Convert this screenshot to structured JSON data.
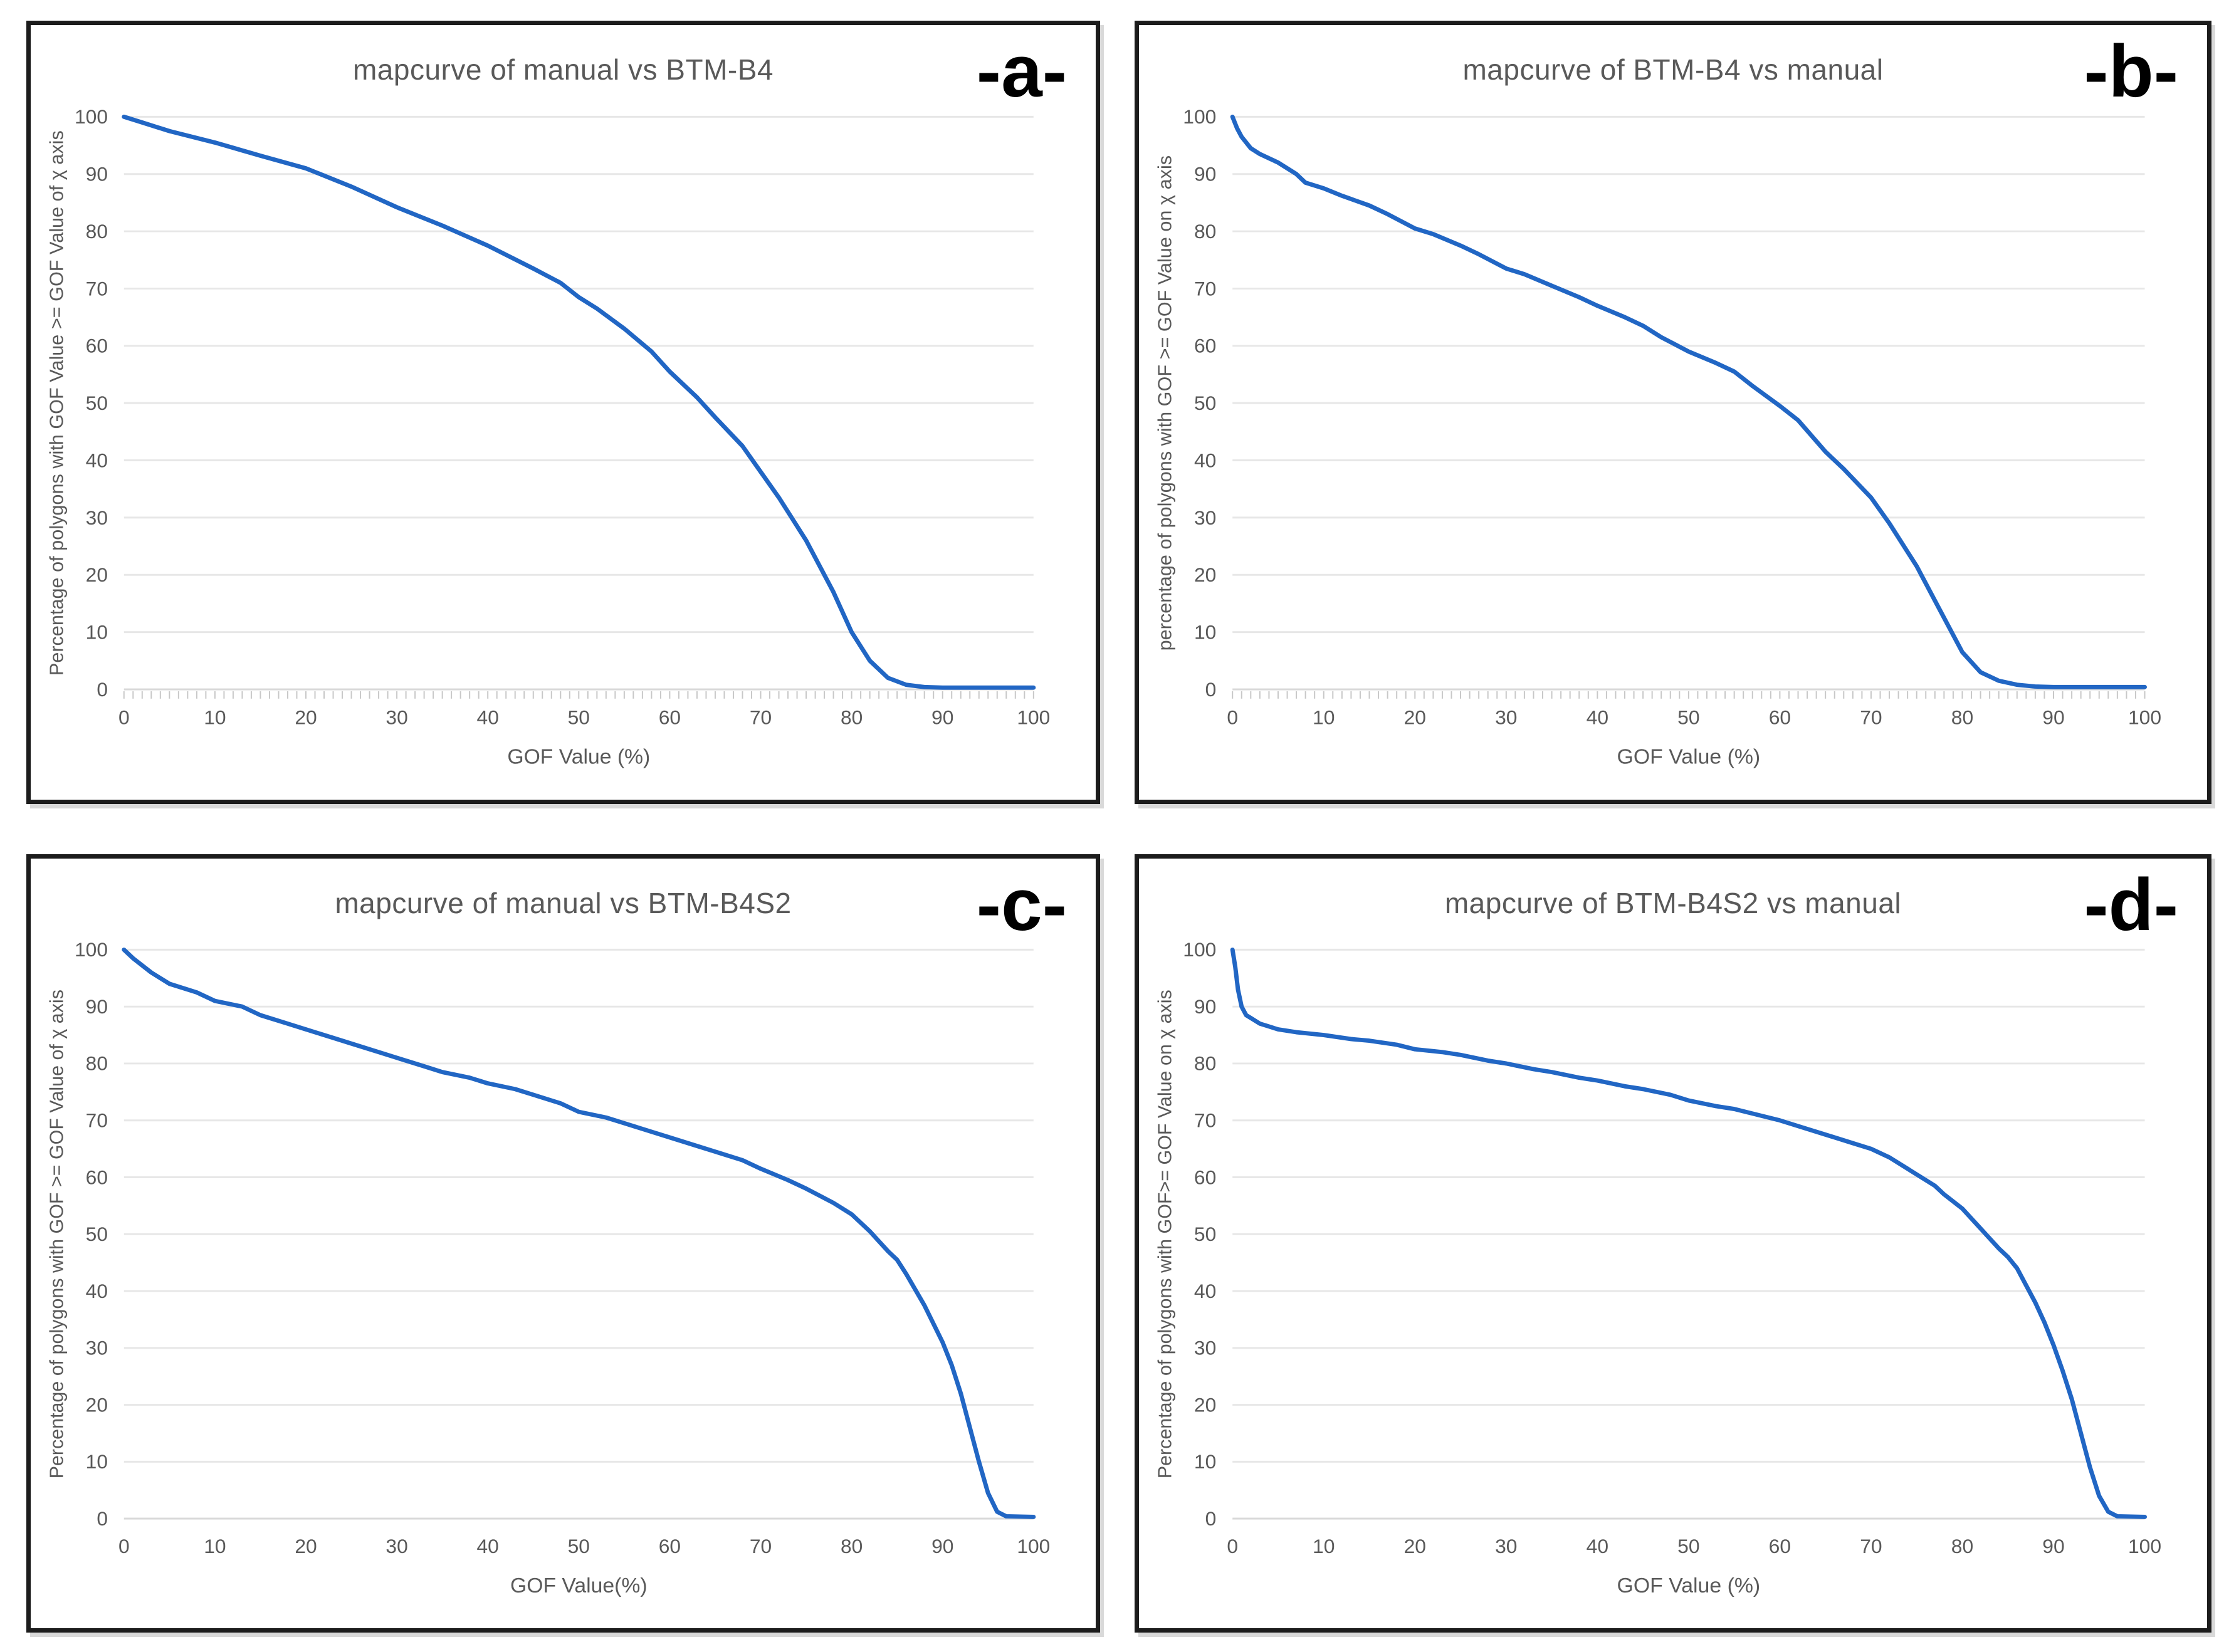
{
  "page": {
    "background": "#ffffff",
    "description": "Four mapcurve line charts comparing manual vs BTM classifications"
  },
  "colors": {
    "curve": "#2166c4",
    "grid": "#e7e7e7",
    "baseline": "#d9d9d9",
    "minor_tick": "#c8c8c8",
    "axis_text": "#595959",
    "title_text": "#595959",
    "panel_border": "#1c1c1c",
    "panel_label": "#000000"
  },
  "chart_data": [
    {
      "type": "line",
      "panel_label": "-a-",
      "title": "mapcurve of manual vs BTM-B4",
      "xlabel": "GOF Value (%)",
      "ylabel": "Percentage of polygons with GOF Value >= GOF Value of χ axis",
      "xlim": [
        0,
        100
      ],
      "ylim": [
        0,
        100
      ],
      "xticks": [
        0,
        10,
        20,
        30,
        40,
        50,
        60,
        70,
        80,
        90,
        100
      ],
      "yticks": [
        0,
        10,
        20,
        30,
        40,
        50,
        60,
        70,
        80,
        90,
        100
      ],
      "grid": "horizontal",
      "legend": "none",
      "minor_x_ticks": true,
      "series": [
        {
          "name": "mapcurve manual vs BTM-B4",
          "points": [
            [
              0,
              100
            ],
            [
              2,
              99
            ],
            [
              5,
              97.5
            ],
            [
              10,
              95.5
            ],
            [
              15,
              93.2
            ],
            [
              20,
              91
            ],
            [
              25,
              87.8
            ],
            [
              30,
              84.2
            ],
            [
              35,
              81
            ],
            [
              40,
              77.5
            ],
            [
              45,
              73.5
            ],
            [
              48,
              71
            ],
            [
              50,
              68.5
            ],
            [
              52,
              66.5
            ],
            [
              55,
              63
            ],
            [
              58,
              59
            ],
            [
              60,
              55.5
            ],
            [
              63,
              51
            ],
            [
              65,
              47.5
            ],
            [
              68,
              42.5
            ],
            [
              70,
              38
            ],
            [
              72,
              33.5
            ],
            [
              75,
              26
            ],
            [
              78,
              17
            ],
            [
              80,
              10
            ],
            [
              82,
              5
            ],
            [
              84,
              2
            ],
            [
              86,
              0.8
            ],
            [
              88,
              0.4
            ],
            [
              90,
              0.3
            ],
            [
              95,
              0.3
            ],
            [
              100,
              0.3
            ]
          ]
        }
      ]
    },
    {
      "type": "line",
      "panel_label": "-b-",
      "title": "mapcurve of BTM-B4 vs manual",
      "xlabel": "GOF Value (%)",
      "ylabel": "percentage of polygons with GOF >= GOF Value on χ axis",
      "xlim": [
        0,
        100
      ],
      "ylim": [
        0,
        100
      ],
      "xticks": [
        0,
        10,
        20,
        30,
        40,
        50,
        60,
        70,
        80,
        90,
        100
      ],
      "yticks": [
        0,
        10,
        20,
        30,
        40,
        50,
        60,
        70,
        80,
        90,
        100
      ],
      "grid": "horizontal",
      "legend": "none",
      "minor_x_ticks": true,
      "series": [
        {
          "name": "mapcurve BTM-B4 vs manual",
          "points": [
            [
              0,
              100
            ],
            [
              0.5,
              98
            ],
            [
              1,
              96.5
            ],
            [
              2,
              94.5
            ],
            [
              3,
              93.5
            ],
            [
              5,
              92
            ],
            [
              7,
              90
            ],
            [
              8,
              88.5
            ],
            [
              10,
              87.5
            ],
            [
              12,
              86.2
            ],
            [
              15,
              84.5
            ],
            [
              17,
              83
            ],
            [
              20,
              80.5
            ],
            [
              22,
              79.5
            ],
            [
              25,
              77.5
            ],
            [
              27,
              76
            ],
            [
              30,
              73.5
            ],
            [
              32,
              72.5
            ],
            [
              35,
              70.5
            ],
            [
              38,
              68.5
            ],
            [
              40,
              67
            ],
            [
              43,
              65
            ],
            [
              45,
              63.5
            ],
            [
              47,
              61.5
            ],
            [
              50,
              59
            ],
            [
              53,
              57
            ],
            [
              55,
              55.5
            ],
            [
              57,
              53
            ],
            [
              60,
              49.5
            ],
            [
              62,
              47
            ],
            [
              65,
              41.5
            ],
            [
              67,
              38.5
            ],
            [
              70,
              33.5
            ],
            [
              72,
              29
            ],
            [
              75,
              21.5
            ],
            [
              77,
              15.5
            ],
            [
              80,
              6.5
            ],
            [
              82,
              3
            ],
            [
              84,
              1.5
            ],
            [
              86,
              0.8
            ],
            [
              88,
              0.5
            ],
            [
              90,
              0.4
            ],
            [
              95,
              0.4
            ],
            [
              100,
              0.4
            ]
          ]
        }
      ]
    },
    {
      "type": "line",
      "panel_label": "-c-",
      "title": "mapcurve of manual vs BTM-B4S2",
      "xlabel": "GOF Value(%)",
      "ylabel": "Percentage of polygons with GOF >= GOF Value of χ axis",
      "xlim": [
        0,
        100
      ],
      "ylim": [
        0,
        100
      ],
      "xticks": [
        0,
        10,
        20,
        30,
        40,
        50,
        60,
        70,
        80,
        90,
        100
      ],
      "yticks": [
        0,
        10,
        20,
        30,
        40,
        50,
        60,
        70,
        80,
        90,
        100
      ],
      "grid": "horizontal",
      "legend": "none",
      "minor_x_ticks": false,
      "series": [
        {
          "name": "mapcurve manual vs BTM-B4S2",
          "points": [
            [
              0,
              100
            ],
            [
              1,
              98.5
            ],
            [
              3,
              96
            ],
            [
              5,
              94
            ],
            [
              8,
              92.5
            ],
            [
              10,
              91
            ],
            [
              13,
              90
            ],
            [
              15,
              88.5
            ],
            [
              18,
              87
            ],
            [
              20,
              86
            ],
            [
              23,
              84.5
            ],
            [
              25,
              83.5
            ],
            [
              28,
              82
            ],
            [
              30,
              81
            ],
            [
              33,
              79.5
            ],
            [
              35,
              78.5
            ],
            [
              38,
              77.5
            ],
            [
              40,
              76.5
            ],
            [
              43,
              75.5
            ],
            [
              45,
              74.5
            ],
            [
              48,
              73
            ],
            [
              50,
              71.5
            ],
            [
              53,
              70.5
            ],
            [
              55,
              69.5
            ],
            [
              58,
              68
            ],
            [
              60,
              67
            ],
            [
              63,
              65.5
            ],
            [
              65,
              64.5
            ],
            [
              68,
              63
            ],
            [
              70,
              61.5
            ],
            [
              73,
              59.5
            ],
            [
              75,
              58
            ],
            [
              78,
              55.5
            ],
            [
              80,
              53.5
            ],
            [
              82,
              50.5
            ],
            [
              84,
              47
            ],
            [
              85,
              45.5
            ],
            [
              86,
              43
            ],
            [
              88,
              37.5
            ],
            [
              90,
              31
            ],
            [
              91,
              27
            ],
            [
              92,
              22
            ],
            [
              93,
              16
            ],
            [
              94,
              10
            ],
            [
              95,
              4.5
            ],
            [
              96,
              1.2
            ],
            [
              97,
              0.4
            ],
            [
              100,
              0.3
            ]
          ]
        }
      ]
    },
    {
      "type": "line",
      "panel_label": "-d-",
      "title": "mapcurve of BTM-B4S2 vs manual",
      "xlabel": "GOF Value (%)",
      "ylabel": "Percentage of polygons with GOF>= GOF Value on χ axis",
      "xlim": [
        0,
        100
      ],
      "ylim": [
        0,
        100
      ],
      "xticks": [
        0,
        10,
        20,
        30,
        40,
        50,
        60,
        70,
        80,
        90,
        100
      ],
      "yticks": [
        0,
        10,
        20,
        30,
        40,
        50,
        60,
        70,
        80,
        90,
        100
      ],
      "grid": "horizontal",
      "legend": "none",
      "minor_x_ticks": false,
      "series": [
        {
          "name": "mapcurve BTM-B4S2 vs manual",
          "points": [
            [
              0,
              100
            ],
            [
              0.3,
              97
            ],
            [
              0.6,
              93
            ],
            [
              1,
              90
            ],
            [
              1.5,
              88.5
            ],
            [
              2,
              88
            ],
            [
              3,
              87
            ],
            [
              4,
              86.5
            ],
            [
              5,
              86
            ],
            [
              7,
              85.5
            ],
            [
              10,
              85
            ],
            [
              13,
              84.3
            ],
            [
              15,
              84
            ],
            [
              18,
              83.3
            ],
            [
              20,
              82.5
            ],
            [
              23,
              82
            ],
            [
              25,
              81.5
            ],
            [
              28,
              80.5
            ],
            [
              30,
              80
            ],
            [
              33,
              79
            ],
            [
              35,
              78.5
            ],
            [
              38,
              77.5
            ],
            [
              40,
              77
            ],
            [
              43,
              76
            ],
            [
              45,
              75.5
            ],
            [
              48,
              74.5
            ],
            [
              50,
              73.5
            ],
            [
              53,
              72.5
            ],
            [
              55,
              72
            ],
            [
              58,
              70.8
            ],
            [
              60,
              70
            ],
            [
              63,
              68.5
            ],
            [
              65,
              67.5
            ],
            [
              68,
              66
            ],
            [
              70,
              65
            ],
            [
              72,
              63.5
            ],
            [
              74,
              61.5
            ],
            [
              75,
              60.5
            ],
            [
              77,
              58.5
            ],
            [
              78,
              57
            ],
            [
              80,
              54.5
            ],
            [
              82,
              51
            ],
            [
              84,
              47.5
            ],
            [
              85,
              46
            ],
            [
              86,
              44
            ],
            [
              87,
              41
            ],
            [
              88,
              38
            ],
            [
              89,
              34.5
            ],
            [
              90,
              30.5
            ],
            [
              91,
              26
            ],
            [
              92,
              21
            ],
            [
              93,
              15
            ],
            [
              94,
              9
            ],
            [
              95,
              4
            ],
            [
              96,
              1.2
            ],
            [
              97,
              0.4
            ],
            [
              100,
              0.3
            ]
          ]
        }
      ]
    }
  ]
}
